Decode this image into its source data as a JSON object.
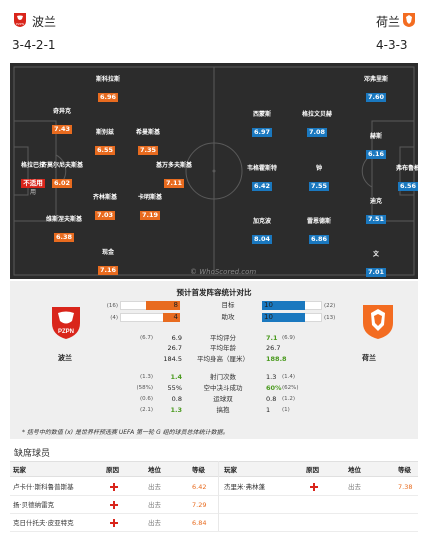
{
  "header": {
    "home_team": "波兰",
    "away_team": "荷兰",
    "home_formation": "3-4-2-1",
    "away_formation": "4-3-3"
  },
  "pitch": {
    "watermark": "© WhoScored.com",
    "home_players": [
      {
        "name": "斯科拉斯",
        "rating": "6.96",
        "color": "orange"
      },
      {
        "name": "奇异克",
        "rating": "7.43",
        "color": "orange"
      },
      {
        "name": "斯别兹",
        "rating": "6.55",
        "color": "orange"
      },
      {
        "name": "希曼斯基",
        "rating": "7.35",
        "color": "orange"
      },
      {
        "name": "格拉巴拉",
        "rating": "不适用",
        "color": "red",
        "note": "用"
      },
      {
        "name": "齐莫尔尼夫斯基",
        "rating": "6.02",
        "color": "orange"
      },
      {
        "name": "基万多夫斯基",
        "rating": "7.11",
        "color": "orange"
      },
      {
        "name": "齐林斯基",
        "rating": "7.03",
        "color": "orange"
      },
      {
        "name": "卡明斯基",
        "rating": "7.19",
        "color": "orange"
      },
      {
        "name": "维斯涅夫斯基",
        "rating": "6.38",
        "color": "orange"
      },
      {
        "name": "现金",
        "rating": "7.16",
        "color": "orange"
      }
    ],
    "away_players": [
      {
        "name": "邓弗里斯",
        "rating": "7.60",
        "color": "blue"
      },
      {
        "name": "西蒙斯",
        "rating": "6.97",
        "color": "blue"
      },
      {
        "name": "格拉文贝赫",
        "rating": "7.08",
        "color": "blue"
      },
      {
        "name": "赫斯",
        "rating": "6.16",
        "color": "blue"
      },
      {
        "name": "韦格霍斯特",
        "rating": "6.42",
        "color": "blue"
      },
      {
        "name": "钟",
        "rating": "7.55",
        "color": "blue"
      },
      {
        "name": "弗布鲁根",
        "rating": "6.56",
        "color": "blue"
      },
      {
        "name": "迪克",
        "rating": "7.51",
        "color": "blue"
      },
      {
        "name": "加克波",
        "rating": "8.04",
        "color": "blue"
      },
      {
        "name": "雷恩德斯",
        "rating": "6.86",
        "color": "blue"
      },
      {
        "name": "文",
        "rating": "7.01",
        "color": "blue"
      }
    ]
  },
  "comparison": {
    "title": "预计首发阵容统计对比",
    "home_label": "波兰",
    "away_label": "荷兰",
    "bars": [
      {
        "label": "目标",
        "home_rank": "(16)",
        "home": 8,
        "away": 10,
        "away_rank": "(22)",
        "max": 14
      },
      {
        "label": "助攻",
        "home_rank": "(4)",
        "home": 4,
        "away": 10,
        "away_rank": "(13)",
        "max": 14
      }
    ],
    "stats": [
      {
        "label": "平均评分",
        "home_rank": "(6.7)",
        "home": "6.9",
        "away": "7.1",
        "away_rank": "(6.9)",
        "highlight": "away"
      },
      {
        "label": "平均年龄",
        "home_rank": "",
        "home": "26.7",
        "away": "26.7",
        "away_rank": "",
        "highlight": ""
      },
      {
        "label": "平均身高（厘米）",
        "home_rank": "",
        "home": "184.5",
        "away": "188.8",
        "away_rank": "",
        "highlight": "away"
      },
      {
        "label": "射门次数",
        "home_rank": "(1.3)",
        "home": "1.4",
        "away": "1.3",
        "away_rank": "(1.4)",
        "highlight": "home"
      },
      {
        "label": "空中决斗成功",
        "home_rank": "(58%)",
        "home": "55%",
        "away": "60%",
        "away_rank": "(62%)",
        "highlight": "away"
      },
      {
        "label": "运球双",
        "home_rank": "(0.6)",
        "home": "0.8",
        "away": "0.8",
        "away_rank": "(1.2)",
        "highlight": ""
      },
      {
        "label": "搞抱",
        "home_rank": "(2.1)",
        "home": "1.3",
        "away": "1",
        "away_rank": "(1)",
        "highlight": "home"
      }
    ],
    "footnote": "* 括号中的数值 (x) 是世界杯预选赛 UEFA 第一轮 G 组的球员总体统计数据。"
  },
  "missing": {
    "title": "缺席球员",
    "headers": {
      "player": "玩家",
      "reason": "原因",
      "position": "地位",
      "rating": "等级"
    },
    "home_rows": [
      {
        "player": "卢卡什·斯科鲁普斯基",
        "position": "出去",
        "rating": "6.42"
      },
      {
        "player": "扬·贝德纳雷克",
        "position": "出去",
        "rating": "7.29"
      },
      {
        "player": "克日什托夫·皮亚特克",
        "position": "出去",
        "rating": "6.84"
      }
    ],
    "away_rows": [
      {
        "player": "杰里米·弗林蓬",
        "position": "出去",
        "rating": "7.38"
      }
    ]
  },
  "colors": {
    "home": "#e86b1f",
    "away": "#1a78bf",
    "highlight": "#4a9a1e",
    "pitch": "#2c2c2c"
  }
}
